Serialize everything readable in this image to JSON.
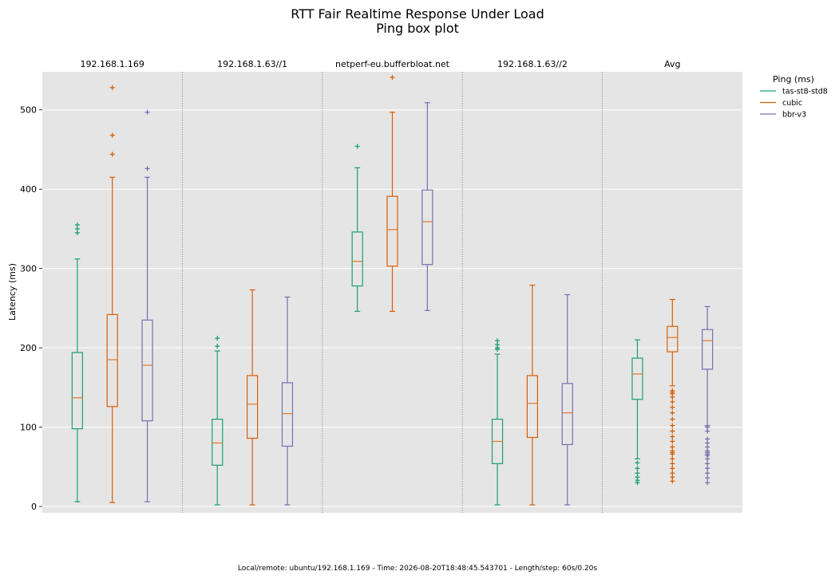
{
  "chart_data": {
    "type": "box",
    "title": "RTT Fair Realtime Response Under Load",
    "subtitle": "Ping box plot",
    "ylabel": "Latency (ms)",
    "ylim": [
      -8,
      548
    ],
    "yticks": [
      0,
      100,
      200,
      300,
      400,
      500
    ],
    "grid": true,
    "legend": {
      "title": "Ping (ms)",
      "placement": "right"
    },
    "groups": [
      "192.168.1.169",
      "192.168.1.63//1",
      "netperf-eu.bufferbloat.net",
      "192.168.1.63//2",
      "Avg"
    ],
    "series": [
      {
        "name": "tas-st8-std8",
        "color": "#1b9e77"
      },
      {
        "name": "cubic",
        "color": "#d95f02"
      },
      {
        "name": "bbr-v3",
        "color": "#7570b3"
      }
    ],
    "boxes": [
      [
        {
          "whislo": 6,
          "q1": 98,
          "med": 137,
          "q3": 194,
          "whishi": 312,
          "fliers": [
            345,
            350,
            355
          ]
        },
        {
          "whislo": 5,
          "q1": 126,
          "med": 185,
          "q3": 242,
          "whishi": 415,
          "fliers": [
            444,
            468,
            528
          ]
        },
        {
          "whislo": 6,
          "q1": 108,
          "med": 178,
          "q3": 235,
          "whishi": 415,
          "fliers": [
            426,
            497
          ]
        }
      ],
      [
        {
          "whislo": 2,
          "q1": 52,
          "med": 80,
          "q3": 110,
          "whishi": 196,
          "fliers": [
            202,
            212
          ]
        },
        {
          "whislo": 2,
          "q1": 86,
          "med": 129,
          "q3": 165,
          "whishi": 273,
          "fliers": []
        },
        {
          "whislo": 2,
          "q1": 76,
          "med": 117,
          "q3": 156,
          "whishi": 264,
          "fliers": []
        }
      ],
      [
        {
          "whislo": 246,
          "q1": 278,
          "med": 309,
          "q3": 346,
          "whishi": 427,
          "fliers": [
            454
          ]
        },
        {
          "whislo": 246,
          "q1": 303,
          "med": 349,
          "q3": 391,
          "whishi": 497,
          "fliers": [
            541
          ]
        },
        {
          "whislo": 247,
          "q1": 305,
          "med": 359,
          "q3": 399,
          "whishi": 509,
          "fliers": []
        }
      ],
      [
        {
          "whislo": 2,
          "q1": 54,
          "med": 82,
          "q3": 110,
          "whishi": 192,
          "fliers": [
            198,
            200,
            204,
            209
          ]
        },
        {
          "whislo": 2,
          "q1": 87,
          "med": 130,
          "q3": 165,
          "whishi": 279,
          "fliers": []
        },
        {
          "whislo": 2,
          "q1": 78,
          "med": 118,
          "q3": 155,
          "whishi": 267,
          "fliers": []
        }
      ],
      [
        {
          "whislo": 60,
          "q1": 135,
          "med": 167,
          "q3": 187,
          "whishi": 210,
          "fliers": [
            30,
            33,
            37,
            42,
            48,
            55
          ]
        },
        {
          "whislo": 152,
          "q1": 195,
          "med": 213,
          "q3": 227,
          "whishi": 261,
          "fliers": [
            32,
            37,
            42,
            48,
            54,
            60,
            66,
            68,
            70,
            75,
            82,
            88,
            95,
            102,
            110,
            118,
            125,
            132,
            138,
            142,
            144,
            146
          ]
        },
        {
          "whislo": 102,
          "q1": 173,
          "med": 209,
          "q3": 223,
          "whishi": 252,
          "fliers": [
            30,
            36,
            42,
            48,
            54,
            60,
            64,
            66,
            68,
            70,
            75,
            80,
            85,
            95,
            100
          ]
        }
      ]
    ]
  },
  "footer": "Local/remote: ubuntu/192.168.1.169 - Time: 2026-08-20T18:48:45.543701 - Length/step: 60s/0.20s"
}
